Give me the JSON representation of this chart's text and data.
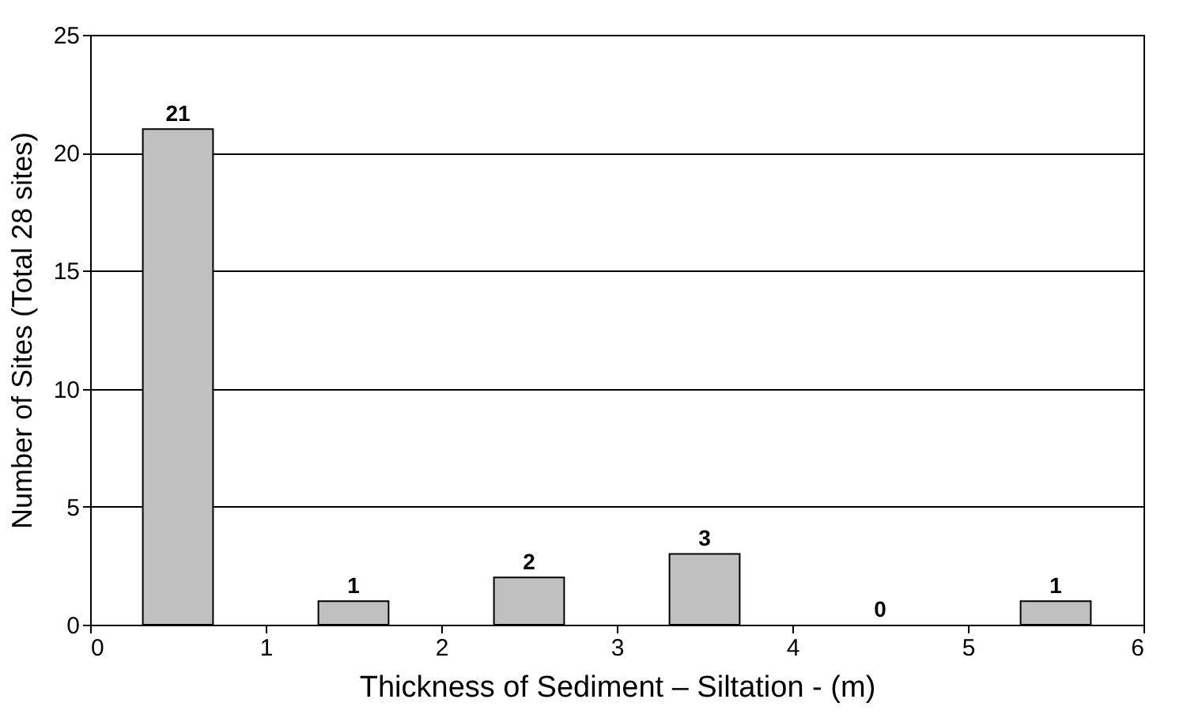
{
  "chart_data": {
    "type": "bar",
    "xlabel": "Thickness of Sediment – Siltation - (m)",
    "ylabel": "Number of Sites (Total 28 sites)",
    "x": [
      0.5,
      1.5,
      2.5,
      3.5,
      4.5,
      5.5
    ],
    "values": [
      21,
      1,
      2,
      3,
      0,
      1
    ],
    "color": "#c0c0c0",
    "xlim": [
      0,
      6
    ],
    "xticks": [
      0,
      1,
      2,
      3,
      4,
      5,
      6
    ],
    "ylim": [
      0,
      25
    ],
    "yticks": [
      0,
      5,
      10,
      15,
      20,
      25
    ],
    "grid": "y",
    "data_labels": true
  }
}
